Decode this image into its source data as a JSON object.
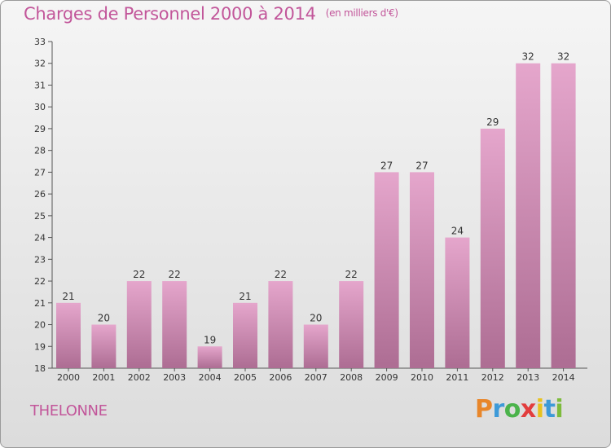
{
  "title": "Charges de Personnel 2000 à 2014",
  "unit": "(en milliers d'€)",
  "commune": "THELONNE",
  "logo": {
    "letters": [
      "P",
      "r",
      "o",
      "x",
      "i",
      "t",
      "i"
    ],
    "colors": [
      "#e8862a",
      "#3d9ad8",
      "#4bb34b",
      "#e23d3d",
      "#e8c21e",
      "#3d9ad8",
      "#7dbb3c"
    ]
  },
  "colors": {
    "bar_top": "#e5a6cc",
    "bar_bottom": "#ad6d93",
    "text_accent": "#c2569a"
  },
  "chart_data": {
    "type": "bar",
    "categories": [
      "2000",
      "2001",
      "2002",
      "2003",
      "2004",
      "2005",
      "2006",
      "2007",
      "2008",
      "2009",
      "2010",
      "2011",
      "2012",
      "2013",
      "2014"
    ],
    "values": [
      21,
      20,
      22,
      22,
      19,
      21,
      22,
      20,
      22,
      27,
      27,
      24,
      29,
      32,
      32
    ],
    "y_ticks": [
      18,
      19,
      20,
      21,
      22,
      23,
      24,
      25,
      26,
      27,
      28,
      29,
      30,
      31,
      32,
      33
    ],
    "ylim": [
      18,
      33
    ],
    "grid": false,
    "legend": "none"
  }
}
